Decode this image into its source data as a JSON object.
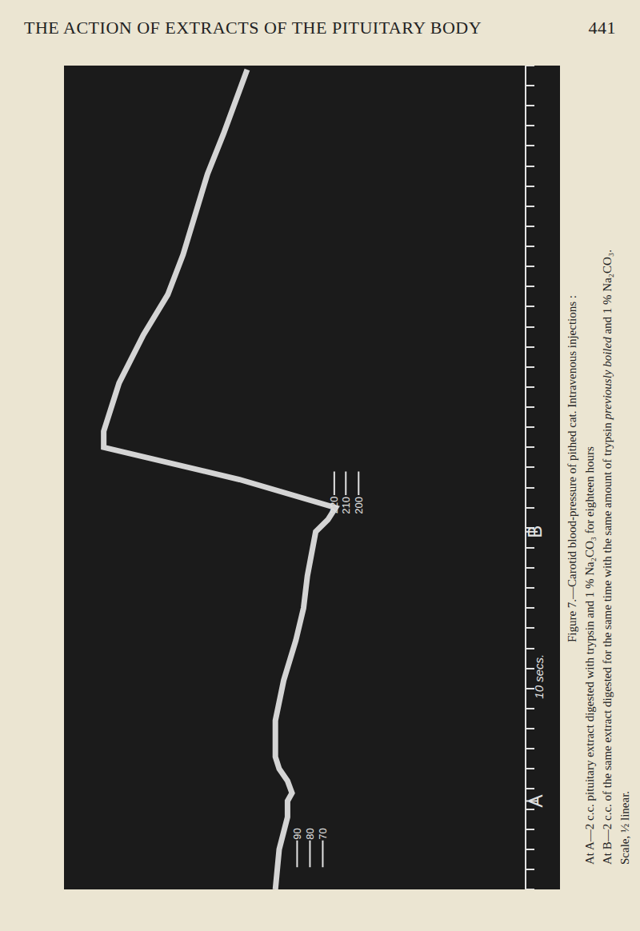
{
  "header": {
    "title": "THE ACTION OF EXTRACTS OF THE PITUITARY BODY",
    "page": "441"
  },
  "caption": [
    [
      {
        "text": "Figure 7.—Carotid blood-pressure of pithed cat.  Intravenous injections :"
      }
    ],
    [
      {
        "text": "At A—2 c.c. pituitary extract digested with trypsin and 1 % Na₂CO₃ for eighteen hours"
      }
    ],
    [
      {
        "text": "At B—2 c.c. of the same extract digested for the same time with the same amount of trypsin "
      },
      {
        "text": "previously boiled",
        "italic": true
      },
      {
        "text": " and 1 % Na₂CO₃."
      }
    ],
    [
      {
        "text": "Scale, ½ linear."
      }
    ]
  ],
  "chart_data": {
    "type": "line",
    "color": "#d4d4d4",
    "x": [
      0,
      20,
      36,
      44,
      48,
      54,
      60,
      66,
      84,
      104,
      124,
      140,
      156,
      168,
      178,
      184,
      190,
      204,
      220,
      228,
      252,
      276,
      296,
      316,
      336,
      356,
      376,
      392,
      408
    ],
    "values": [
      107,
      104,
      97.5,
      97.5,
      94,
      97.5,
      104,
      107,
      107,
      100.5,
      91,
      85,
      82,
      79,
      75.5,
      66,
      60,
      135,
      241,
      241,
      229,
      210,
      191,
      179,
      169,
      160,
      147.5,
      138,
      129
    ],
    "xlim": [
      0,
      410
    ],
    "xticks": [
      0,
      10,
      20,
      30,
      40,
      50,
      60,
      70,
      80,
      90,
      100,
      110,
      120,
      130,
      140,
      150,
      160,
      170,
      180,
      190,
      200,
      210,
      220,
      230,
      240,
      250,
      260,
      270,
      280,
      290,
      300,
      310,
      320,
      330,
      340,
      350,
      360,
      370,
      380,
      390,
      400,
      410
    ],
    "ylim": [
      272,
      -61
    ],
    "tick_labels": false,
    "grid": false,
    "injections": [
      {
        "label": "A",
        "x": 44
      },
      {
        "label": "B",
        "x": 178
      }
    ],
    "pressure_marks": [
      {
        "x": 208,
        "label_side": "below",
        "marks": [
          {
            "position": 61,
            "text": "220"
          },
          {
            "position": 52,
            "text": "210"
          },
          {
            "position": 42,
            "text": "200"
          }
        ]
      },
      {
        "x": 11,
        "label_side": "above",
        "marks": [
          {
            "position": 90,
            "text": "90"
          },
          {
            "position": 80,
            "text": "80"
          },
          {
            "position": 70,
            "text": "70"
          }
        ]
      }
    ],
    "time_label": {
      "text": "10 secs.",
      "x": 106
    }
  }
}
